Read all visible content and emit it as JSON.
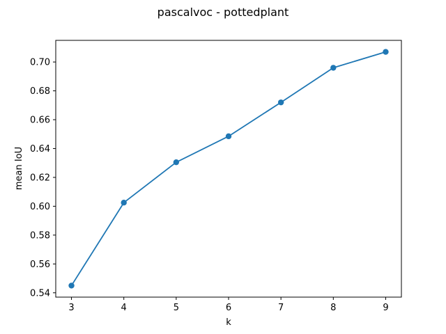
{
  "chart_data": {
    "type": "line",
    "title": "pascalvoc - pottedplant",
    "xlabel": "k",
    "ylabel": "mean IoU",
    "x": [
      3,
      4,
      5,
      6,
      7,
      8,
      9
    ],
    "series": [
      {
        "values": [
          0.545,
          0.6025,
          0.6305,
          0.6485,
          0.672,
          0.696,
          0.707
        ],
        "color": "#1f77b4",
        "marker": "circle"
      }
    ],
    "xlim": [
      2.7,
      9.3
    ],
    "ylim": [
      0.537,
      0.715
    ],
    "xticks": [
      3,
      4,
      5,
      6,
      7,
      8,
      9
    ],
    "xtick_labels": [
      "3",
      "4",
      "5",
      "6",
      "7",
      "8",
      "9"
    ],
    "yticks": [
      0.54,
      0.56,
      0.58,
      0.6,
      0.62,
      0.64,
      0.66,
      0.68,
      0.7
    ],
    "ytick_labels": [
      "0.54",
      "0.56",
      "0.58",
      "0.60",
      "0.62",
      "0.64",
      "0.66",
      "0.68",
      "0.70"
    ],
    "grid": false,
    "legend": false
  }
}
